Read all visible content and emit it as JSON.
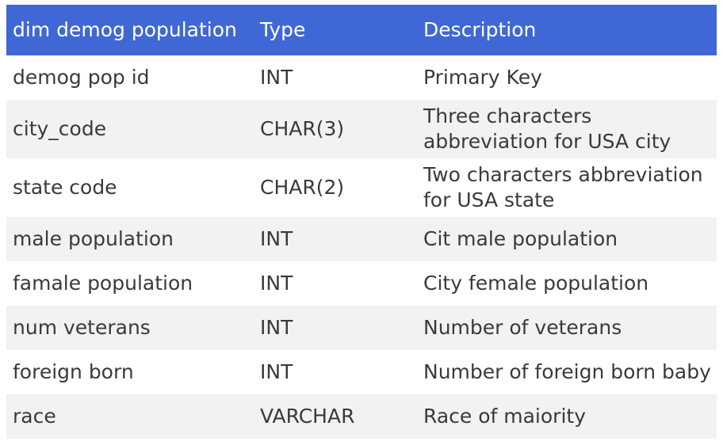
{
  "table": {
    "headers": [
      "dim demog population",
      "Type",
      "Description"
    ],
    "rows": [
      [
        "demog pop id",
        "INT",
        "Primary Key"
      ],
      [
        "city_code",
        "CHAR(3)",
        "Three characters abbreviation for USA city"
      ],
      [
        "state code",
        "CHAR(2)",
        "Two characters abbreviation for USA state"
      ],
      [
        "male population",
        "INT",
        "Cit male population"
      ],
      [
        "famale population",
        "INT",
        "City female population"
      ],
      [
        "num veterans",
        "INT",
        "Number of veterans"
      ],
      [
        "foreign born",
        "INT",
        "Number of foreign born baby"
      ],
      [
        "race",
        "VARCHAR",
        "Race of maiority"
      ]
    ]
  },
  "colors": {
    "header_bg": "#4067d6",
    "header_text": "#ffffff",
    "row_alt_bg": "#f2f2f2",
    "text": "#3a3a3a"
  }
}
